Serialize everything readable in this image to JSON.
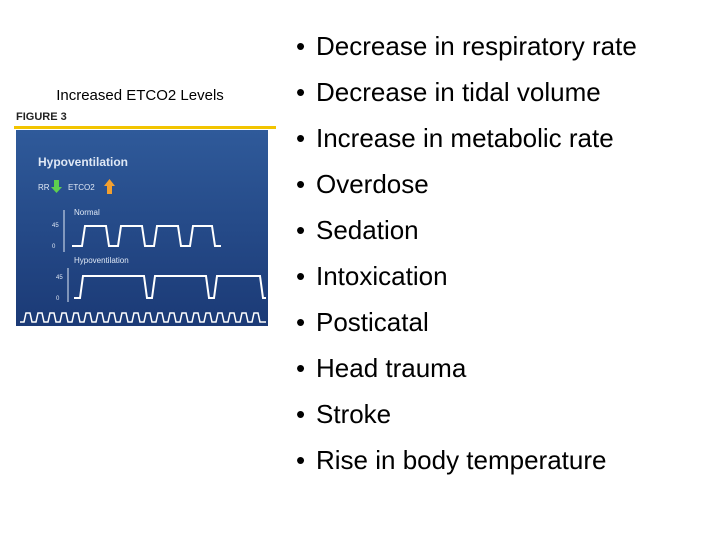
{
  "header": {
    "title": "Increased ETCO2 Levels"
  },
  "figure": {
    "label": "FIGURE 3",
    "heading": "Hypoventilation",
    "rr": "RR",
    "etco2": "ETCO2",
    "normal": {
      "label": "Normal",
      "high": "45",
      "low": "0"
    },
    "hypo": {
      "label": "Hypoventilation",
      "high": "45",
      "low": "0"
    }
  },
  "list": {
    "items": [
      "Decrease in respiratory rate",
      "Decrease in tidal volume",
      "Increase in metabolic rate",
      "Overdose",
      "Sedation",
      "Intoxication",
      "Posticatal",
      "Head trauma",
      "Stroke",
      "Rise in body temperature"
    ]
  }
}
